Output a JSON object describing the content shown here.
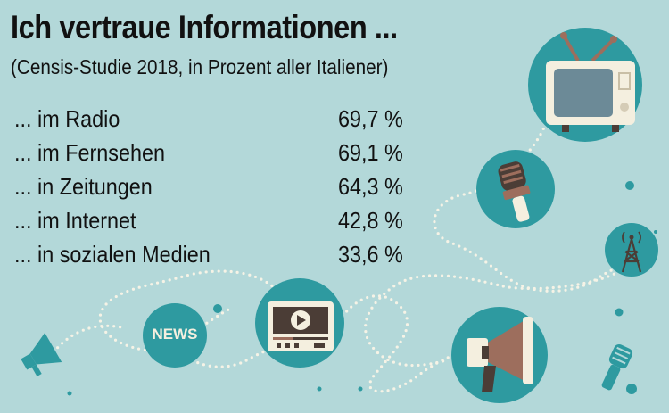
{
  "title": "Ich vertraue Informationen ...",
  "subtitle": "(Censis-Studie 2018, in Prozent aller Italiener)",
  "rows": [
    {
      "label": "... im Radio",
      "value": "69,7 %"
    },
    {
      "label": "... im Fernsehen",
      "value": "69,1 %"
    },
    {
      "label": "... in Zeitungen",
      "value": "64,3 %"
    },
    {
      "label": "... im Internet",
      "value": "42,8 %"
    },
    {
      "label": "... in sozialen Medien",
      "value": "33,6 %"
    }
  ],
  "news_badge": "NEWS",
  "colors": {
    "background": "#b3d8d9",
    "circle": "#2e9aa0",
    "dark": "#4b3d36",
    "brown": "#9d6e5d",
    "cream": "#f4efdf",
    "dots": "#f6f3e6"
  },
  "icons": [
    "tv-icon",
    "microphone-icon",
    "radio-tower-icon",
    "news-icon",
    "video-player-icon",
    "megaphone-icon"
  ]
}
